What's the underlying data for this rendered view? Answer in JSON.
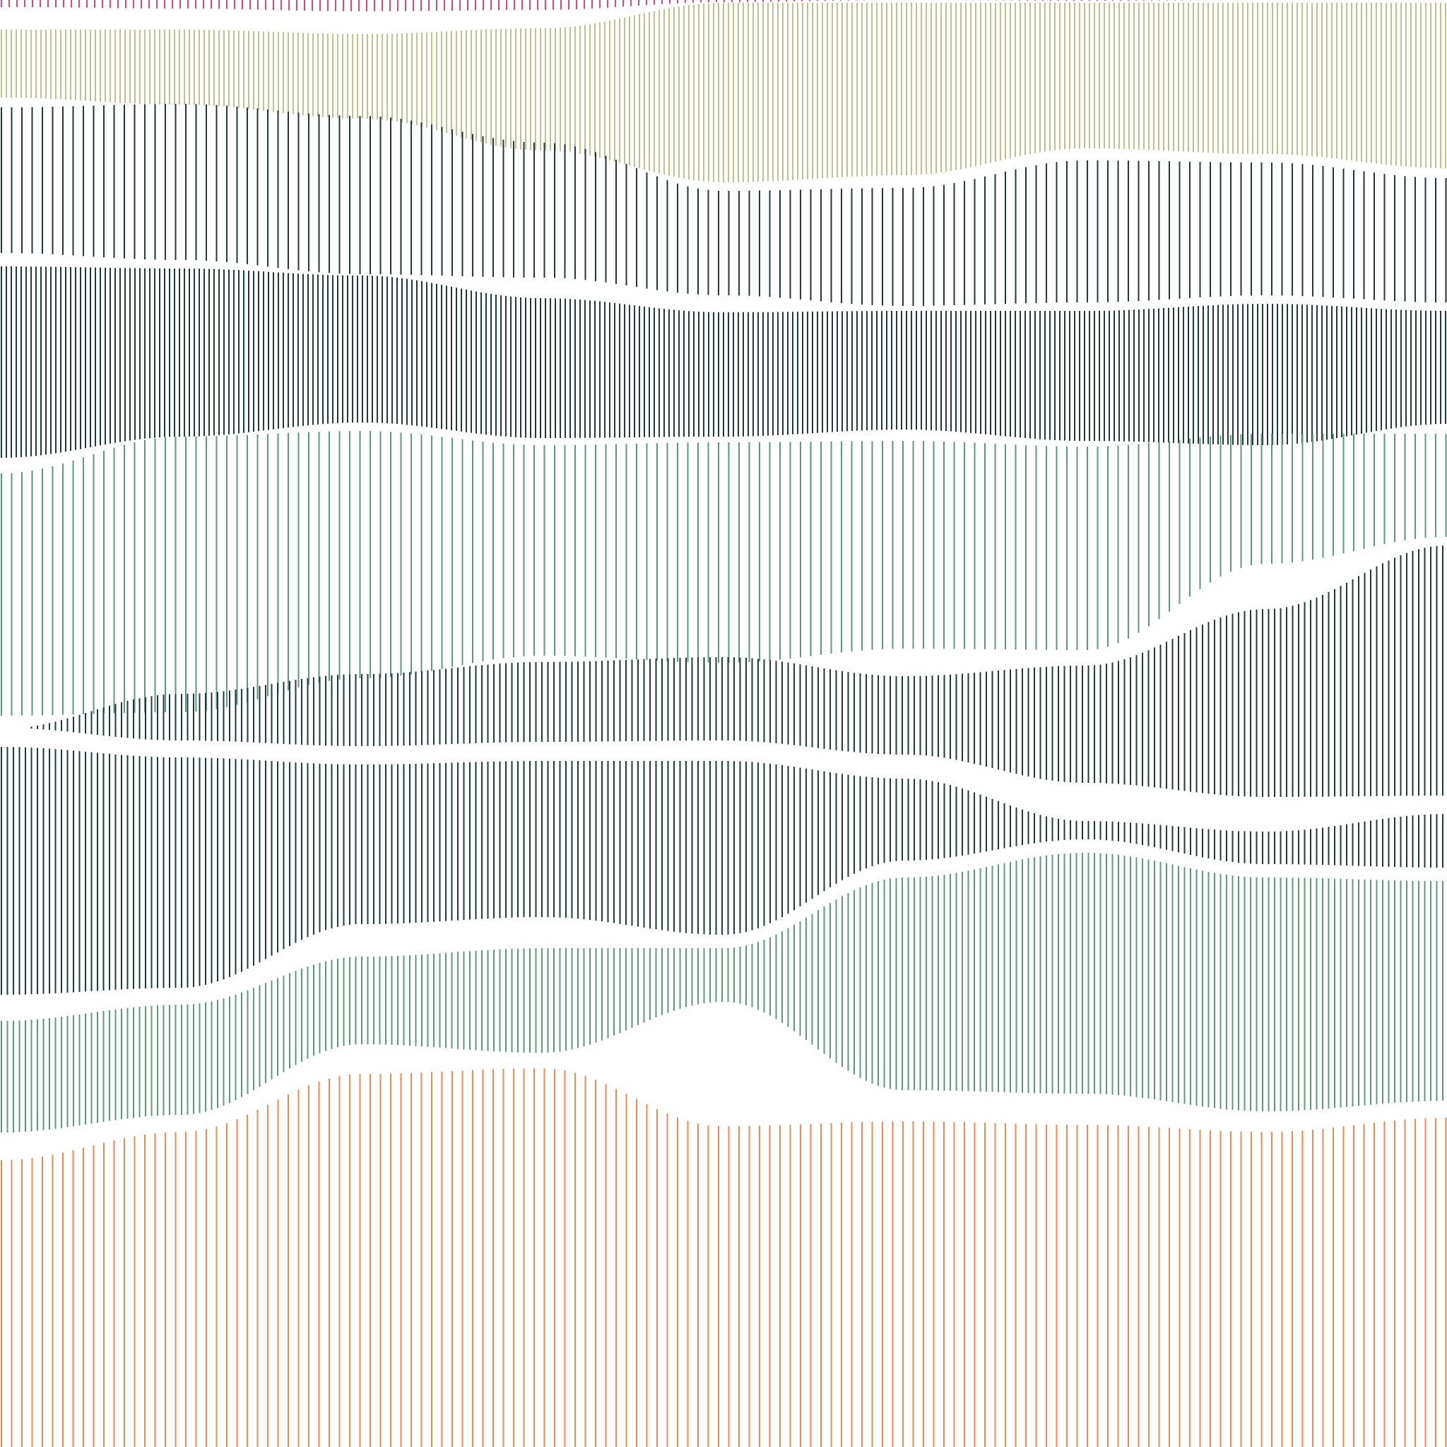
{
  "artwork": {
    "background": "#ffffff",
    "style": "vertical hatched wavy bands",
    "bands": [
      {
        "id": "band-1",
        "color": "#e0457b",
        "density": "medium"
      },
      {
        "id": "band-2",
        "color": "#bfc08e",
        "density": "very-dense"
      },
      {
        "id": "band-3",
        "color": "#1f3a3d",
        "density": "sparse"
      },
      {
        "id": "band-4",
        "color": "#1f3a3d",
        "density": "very-dense"
      },
      {
        "id": "band-5",
        "color": "#5c9a7c",
        "density": "sparse"
      },
      {
        "id": "band-6",
        "color": "#1f3a3d",
        "density": "dense"
      },
      {
        "id": "band-7",
        "color": "#1f3a3d",
        "density": "dense"
      },
      {
        "id": "band-8",
        "color": "#5c9a7c",
        "density": "dense"
      },
      {
        "id": "band-9",
        "color": "#f08a52",
        "density": "sparse"
      }
    ]
  }
}
